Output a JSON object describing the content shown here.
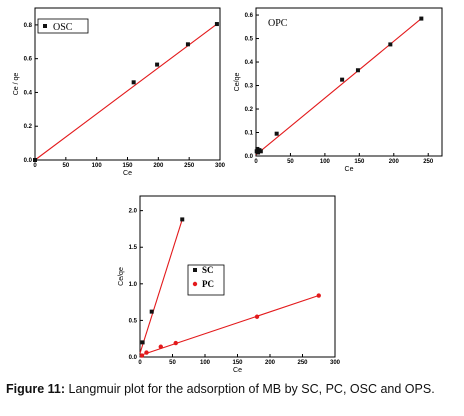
{
  "caption": {
    "label": "Figure 11:",
    "text": " Langmuir plot for the adsorption of MB by SC, PC, OSC and OPS."
  },
  "colors": {
    "line": "#e31a1c",
    "marker_square": "#111111",
    "marker_circle": "#e31a1c"
  },
  "chart_data": [
    {
      "type": "scatter",
      "title": "",
      "xlabel": "Ce",
      "ylabel": "Ce / qe",
      "xlim": [
        0,
        300
      ],
      "ylim": [
        0,
        0.9
      ],
      "xticks": [
        "0",
        "50",
        "100",
        "150",
        "200",
        "250",
        "300"
      ],
      "yticks": [
        "0.0",
        "0.2",
        "0.4",
        "0.6",
        "0.8"
      ],
      "legend_position": "top-left",
      "series": [
        {
          "name": "OSC",
          "marker": "square",
          "x": [
            0,
            160,
            198,
            248,
            295
          ],
          "y": [
            0,
            0.46,
            0.565,
            0.685,
            0.805
          ]
        }
      ],
      "fit_line": {
        "x": [
          0,
          295
        ],
        "y": [
          0,
          0.805
        ]
      }
    },
    {
      "type": "scatter",
      "title": "",
      "xlabel": "Ce",
      "ylabel": "Ce/qe",
      "xlim": [
        0,
        270
      ],
      "ylim": [
        0,
        0.63
      ],
      "xticks": [
        "0",
        "50",
        "100",
        "150",
        "200",
        "250"
      ],
      "yticks": [
        "0.0",
        "0.1",
        "0.2",
        "0.3",
        "0.4",
        "0.5",
        "0.6"
      ],
      "label": "OPC",
      "series": [
        {
          "name": "",
          "marker": "square",
          "x": [
            1,
            2,
            3,
            5,
            7,
            30,
            125,
            148,
            195,
            240
          ],
          "y": [
            0.02,
            0.03,
            0.015,
            0.025,
            0.02,
            0.095,
            0.325,
            0.365,
            0.475,
            0.585
          ]
        }
      ],
      "fit_line": {
        "x": [
          0,
          240
        ],
        "y": [
          0.005,
          0.585
        ]
      }
    },
    {
      "type": "scatter",
      "title": "",
      "xlabel": "Ce",
      "ylabel": "Ce/qe",
      "xlim": [
        0,
        300
      ],
      "ylim": [
        0,
        2.2
      ],
      "xticks": [
        "0",
        "50",
        "100",
        "150",
        "200",
        "250",
        "300"
      ],
      "yticks": [
        "0.0",
        "0.5",
        "1.0",
        "1.5",
        "2.0"
      ],
      "legend_position": "center-right",
      "series": [
        {
          "name": "SC",
          "marker": "square",
          "x": [
            4,
            18,
            65
          ],
          "y": [
            0.2,
            0.62,
            1.88
          ]
        },
        {
          "name": "PC",
          "marker": "circle",
          "x": [
            3,
            10,
            32,
            55,
            180,
            275
          ],
          "y": [
            0.02,
            0.06,
            0.14,
            0.19,
            0.55,
            0.84
          ]
        }
      ],
      "fit_lines": [
        {
          "x": [
            0,
            65
          ],
          "y": [
            0.05,
            1.88
          ]
        },
        {
          "x": [
            0,
            275
          ],
          "y": [
            0.02,
            0.84
          ]
        }
      ]
    }
  ]
}
